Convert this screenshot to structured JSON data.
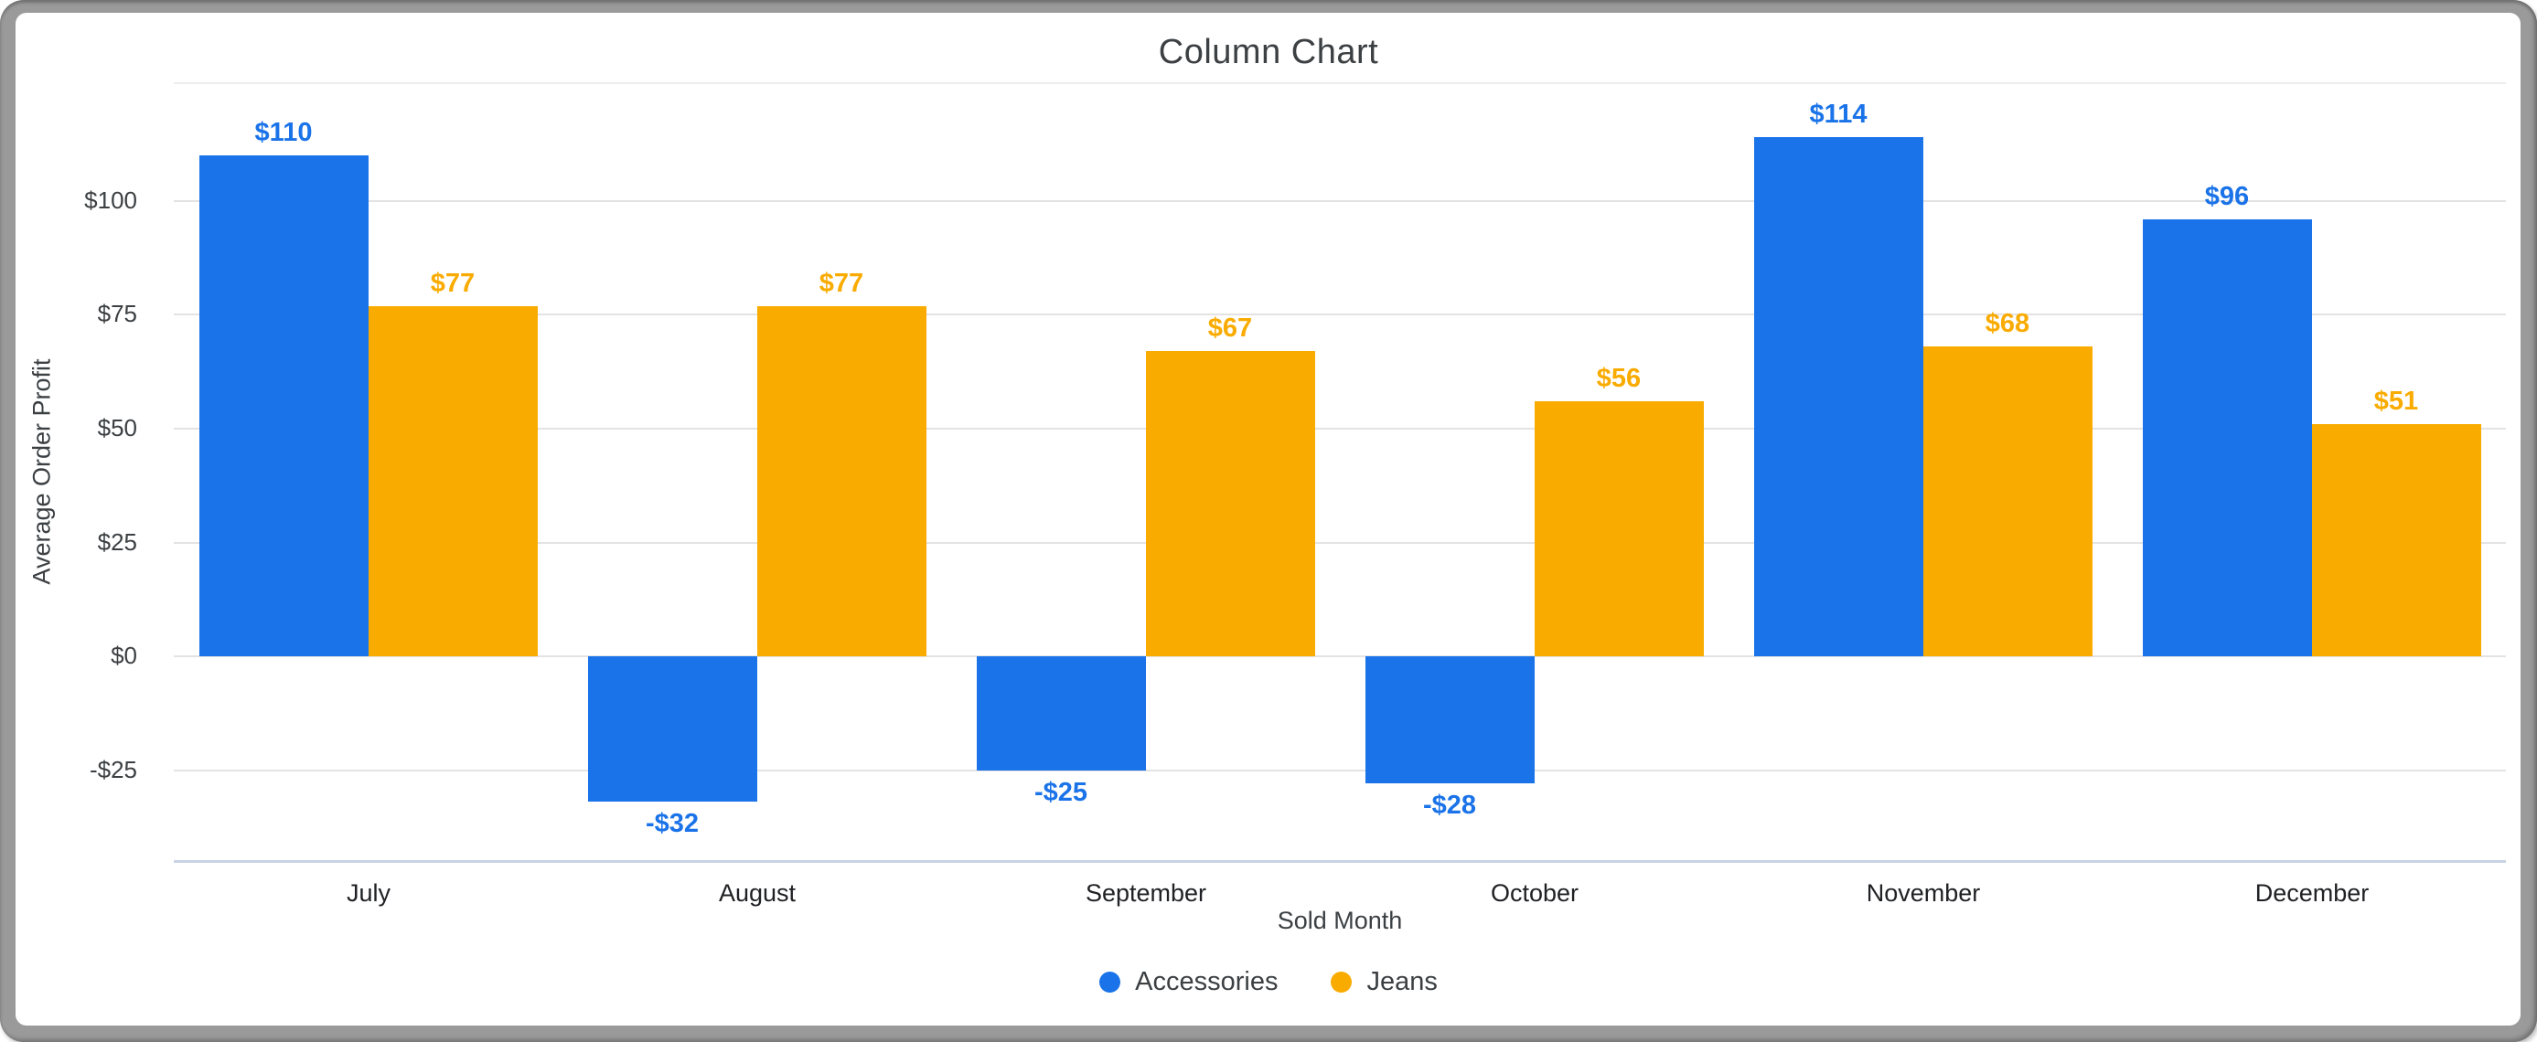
{
  "window": {
    "frame_color": "#9a9a9a",
    "card_color": "#ffffff"
  },
  "chart_data": {
    "type": "bar",
    "title": "Column Chart",
    "xlabel": "Sold Month",
    "ylabel": "Average Order Profit",
    "categories": [
      "July",
      "August",
      "September",
      "October",
      "November",
      "December"
    ],
    "series": [
      {
        "name": "Accessories",
        "color": "#1a73e8",
        "values": [
          110,
          -32,
          -25,
          -28,
          114,
          96
        ],
        "labels": [
          "$110",
          "-$32",
          "-$25",
          "-$28",
          "$114",
          "$96"
        ]
      },
      {
        "name": "Jeans",
        "color": "#f9ab00",
        "values": [
          77,
          77,
          67,
          56,
          68,
          51
        ],
        "labels": [
          "$77",
          "$77",
          "$67",
          "$56",
          "$68",
          "$51"
        ]
      }
    ],
    "y_ticks": [
      {
        "value": 100,
        "label": "$100"
      },
      {
        "value": 75,
        "label": "$75"
      },
      {
        "value": 50,
        "label": "$50"
      },
      {
        "value": 25,
        "label": "$25"
      },
      {
        "value": 0,
        "label": "$0"
      },
      {
        "value": -25,
        "label": "-$25"
      }
    ],
    "ylim": [
      -45,
      126
    ],
    "grid": true,
    "legend_position": "bottom",
    "colors": {
      "gridline": "#e3e3e3",
      "baseline": "#c9d3e3",
      "title_text": "#3c4043",
      "axis_text": "#3c4043",
      "category_text": "#202124"
    }
  }
}
